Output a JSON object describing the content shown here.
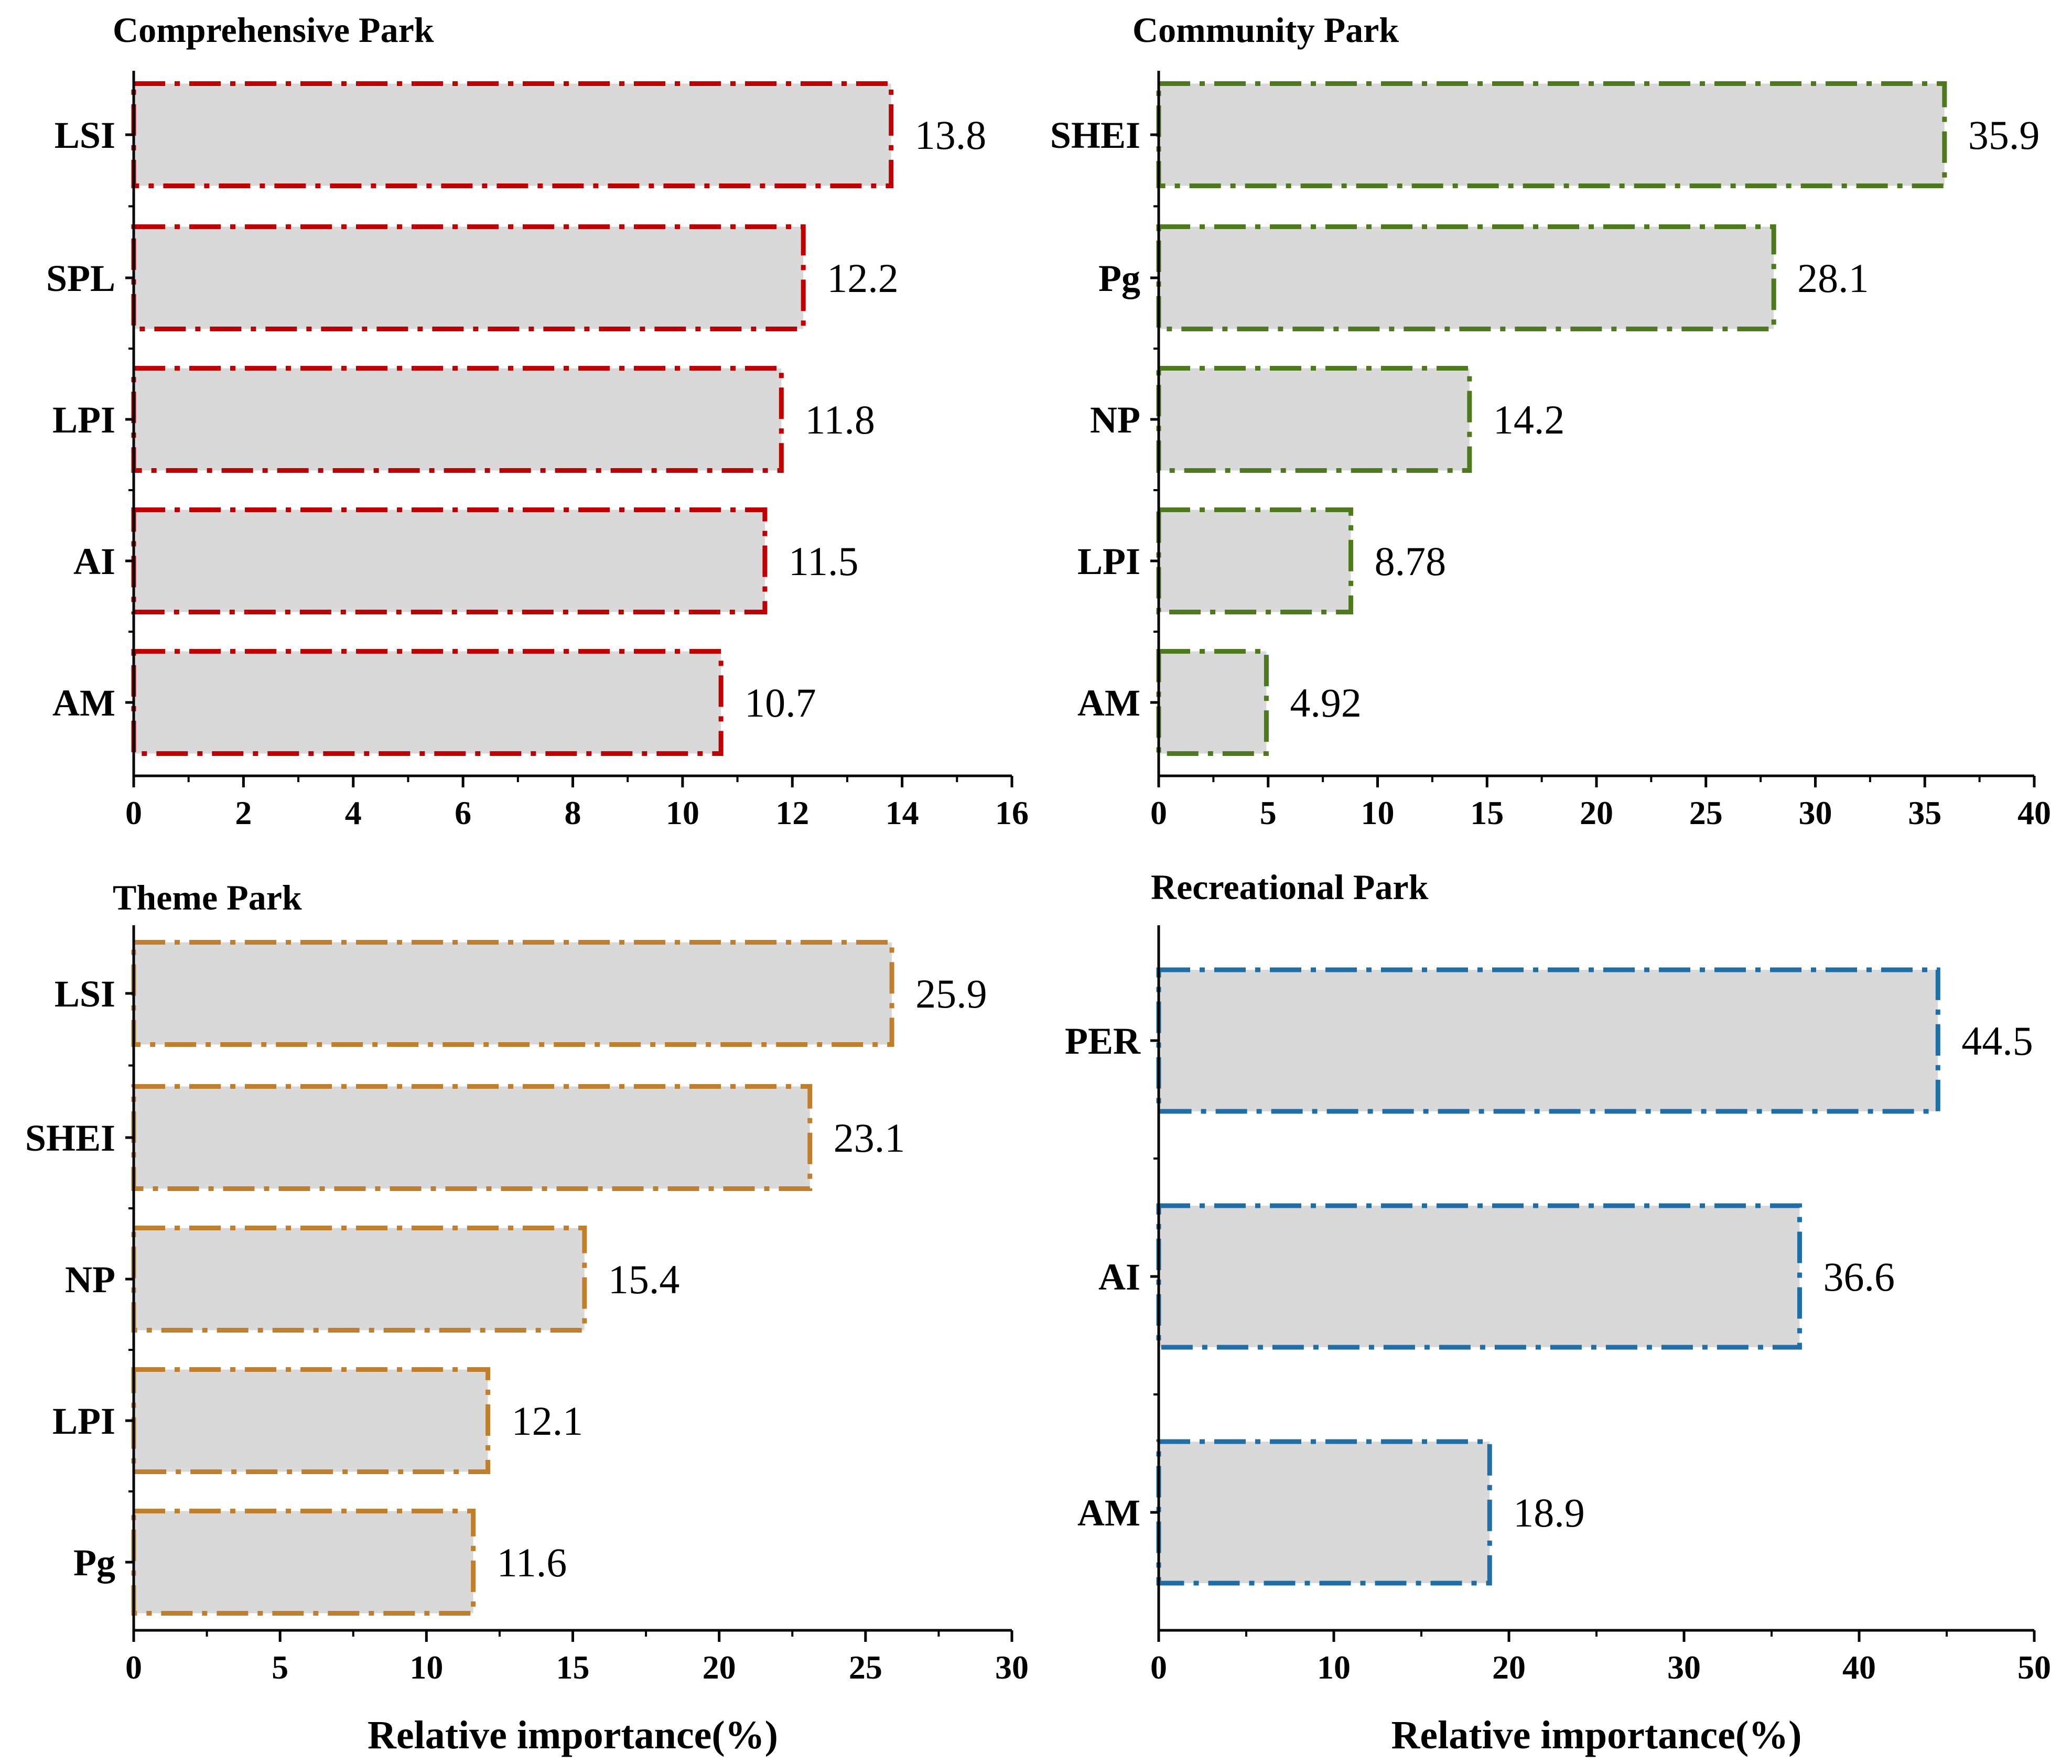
{
  "xlabel_shared": "Relative importance(%)",
  "chart_data": [
    {
      "type": "bar",
      "orientation": "horizontal",
      "title": "Comprehensive Park",
      "categories": [
        "LSI",
        "SPL",
        "LPI",
        "AI",
        "AM"
      ],
      "values": [
        13.8,
        12.2,
        11.8,
        11.5,
        10.7
      ],
      "value_labels": [
        "13.8",
        "12.2",
        "11.8",
        "11.5",
        "10.7"
      ],
      "xlabel": "",
      "xlim": [
        0,
        16
      ],
      "xticks": [
        0,
        2,
        4,
        6,
        8,
        10,
        12,
        14,
        16
      ],
      "bar_fill": "#d9d9d9",
      "edge_color": "#c00000",
      "edge_style": "dash-dot"
    },
    {
      "type": "bar",
      "orientation": "horizontal",
      "title": "Community Park",
      "categories": [
        "SHEI",
        "Pg",
        "NP",
        "LPI",
        "AM"
      ],
      "values": [
        35.9,
        28.1,
        14.2,
        8.78,
        4.92
      ],
      "value_labels": [
        "35.9",
        "28.1",
        "14.2",
        "8.78",
        "4.92"
      ],
      "xlabel": "",
      "xlim": [
        0,
        40
      ],
      "xticks": [
        0,
        5,
        10,
        15,
        20,
        25,
        30,
        35,
        40
      ],
      "bar_fill": "#d9d9d9",
      "edge_color": "#4e7a1e",
      "edge_style": "dash-dot"
    },
    {
      "type": "bar",
      "orientation": "horizontal",
      "title": "Theme Park",
      "categories": [
        "LSI",
        "SHEI",
        "NP",
        "LPI",
        "Pg"
      ],
      "values": [
        25.9,
        23.1,
        15.4,
        12.1,
        11.6
      ],
      "value_labels": [
        "25.9",
        "23.1",
        "15.4",
        "12.1",
        "11.6"
      ],
      "xlabel": "Relative importance(%)",
      "xlim": [
        0,
        30
      ],
      "xticks": [
        0,
        5,
        10,
        15,
        20,
        25,
        30
      ],
      "bar_fill": "#d9d9d9",
      "edge_color": "#c07f2c",
      "edge_style": "dash-dot"
    },
    {
      "type": "bar",
      "orientation": "horizontal",
      "title": "Recreational Park",
      "categories": [
        "PER",
        "AI",
        "AM"
      ],
      "values": [
        44.5,
        36.6,
        18.9
      ],
      "value_labels": [
        "44.5",
        "36.6",
        "18.9"
      ],
      "xlabel": "Relative importance(%)",
      "xlim": [
        0,
        50
      ],
      "xticks": [
        0,
        10,
        20,
        30,
        40,
        50
      ],
      "bar_fill": "#d9d9d9",
      "edge_color": "#1f6fa6",
      "edge_style": "dash-dot"
    }
  ]
}
